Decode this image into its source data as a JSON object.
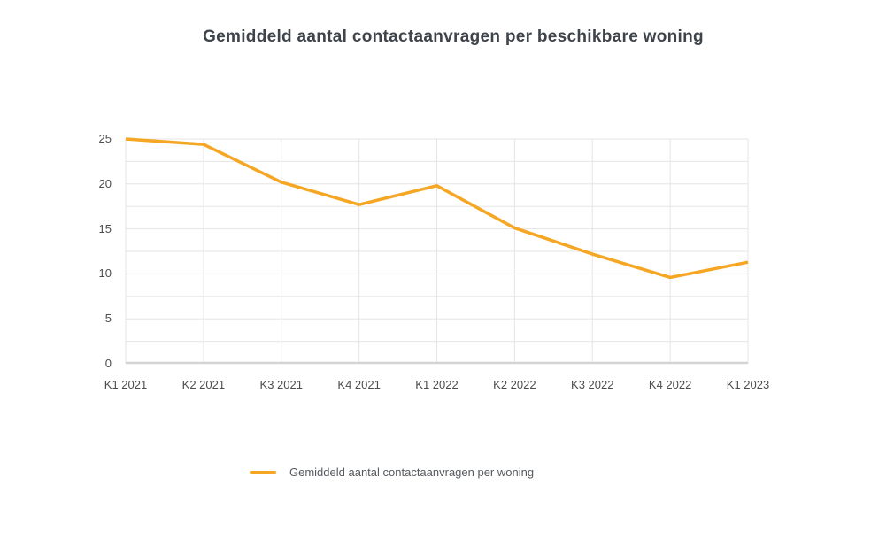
{
  "chart_data": {
    "type": "line",
    "title": "Gemiddeld aantal contactaanvragen per beschikbare woning",
    "categories": [
      "K1 2021",
      "K2 2021",
      "K3 2021",
      "K4 2021",
      "K1 2022",
      "K2 2022",
      "K3 2022",
      "K4 2022",
      "K1 2023"
    ],
    "series": [
      {
        "name": "Gemiddeld aantal contactaanvragen per woning",
        "values": [
          25.0,
          24.4,
          20.2,
          17.7,
          19.8,
          15.1,
          12.2,
          9.6,
          11.3
        ],
        "color": "#f5a623"
      }
    ],
    "xlabel": "",
    "ylabel": "",
    "ylim": [
      0,
      25
    ],
    "y_major_ticks": [
      0,
      5,
      10,
      15,
      20,
      25
    ],
    "y_minor_interval": 2.5,
    "grid": true,
    "legend_position": "bottom"
  },
  "colors": {
    "line": "#f5a623",
    "gridline": "#e5e5e5",
    "axis_line": "#d4d4d4",
    "title_text": "#3e444b",
    "tick_text": "#4d4d4d",
    "legend_text": "#565a5f",
    "background": "#ffffff"
  }
}
